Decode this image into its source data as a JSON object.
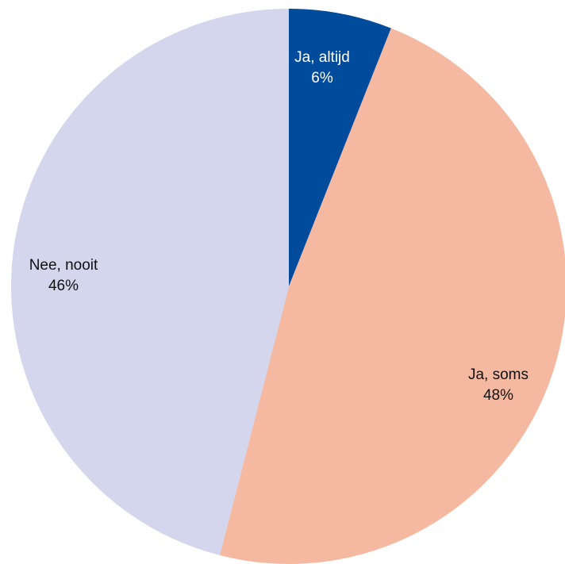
{
  "chart_data": {
    "type": "pie",
    "title": "",
    "slices": [
      {
        "label": "Ja, altijd",
        "value": 6,
        "value_label": "6%",
        "color": "#004B9B",
        "label_color": "#ffffff"
      },
      {
        "label": "Ja, soms",
        "value": 48,
        "value_label": "48%",
        "color": "#F5B8A1",
        "label_color": "#111111"
      },
      {
        "label": "Nee, nooit",
        "value": 46,
        "value_label": "46%",
        "color": "#D3D6EC",
        "label_color": "#111111"
      }
    ],
    "start_angle": "12 o'clock",
    "direction": "clockwise",
    "legend": "none"
  }
}
